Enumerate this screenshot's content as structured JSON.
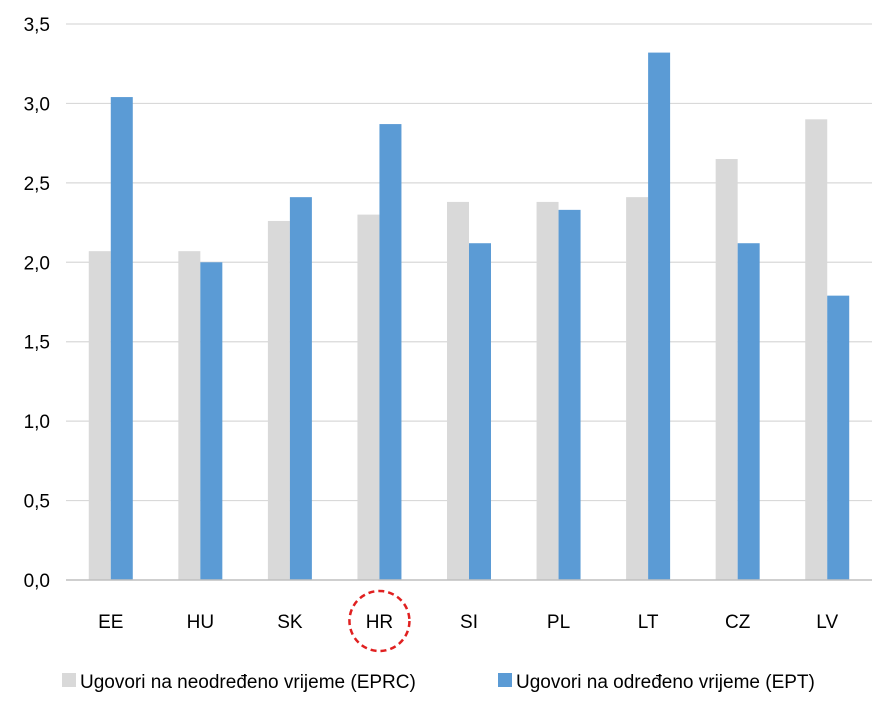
{
  "chart_data": {
    "type": "bar",
    "categories": [
      "EE",
      "HU",
      "SK",
      "HR",
      "SI",
      "PL",
      "LT",
      "CZ",
      "LV"
    ],
    "series": [
      {
        "name": "Ugovori na neodređeno vrijeme (EPRC)",
        "color": "#d9d9d9",
        "values": [
          2.07,
          2.07,
          2.26,
          2.3,
          2.38,
          2.38,
          2.41,
          2.65,
          2.9
        ]
      },
      {
        "name": "Ugovori na određeno vrijeme (EPT)",
        "color": "#5b9bd5",
        "values": [
          3.04,
          2.0,
          2.41,
          2.87,
          2.12,
          2.33,
          3.32,
          2.12,
          1.79
        ]
      }
    ],
    "yticks": [
      "0,0",
      "0,5",
      "1,0",
      "1,5",
      "2,0",
      "2,5",
      "3,0",
      "3,5"
    ],
    "ylim": [
      0,
      3.5
    ],
    "grid": true,
    "legend": "bottom",
    "highlight": {
      "category": "HR",
      "style": "red dashed circle",
      "color": "#e02020"
    }
  }
}
